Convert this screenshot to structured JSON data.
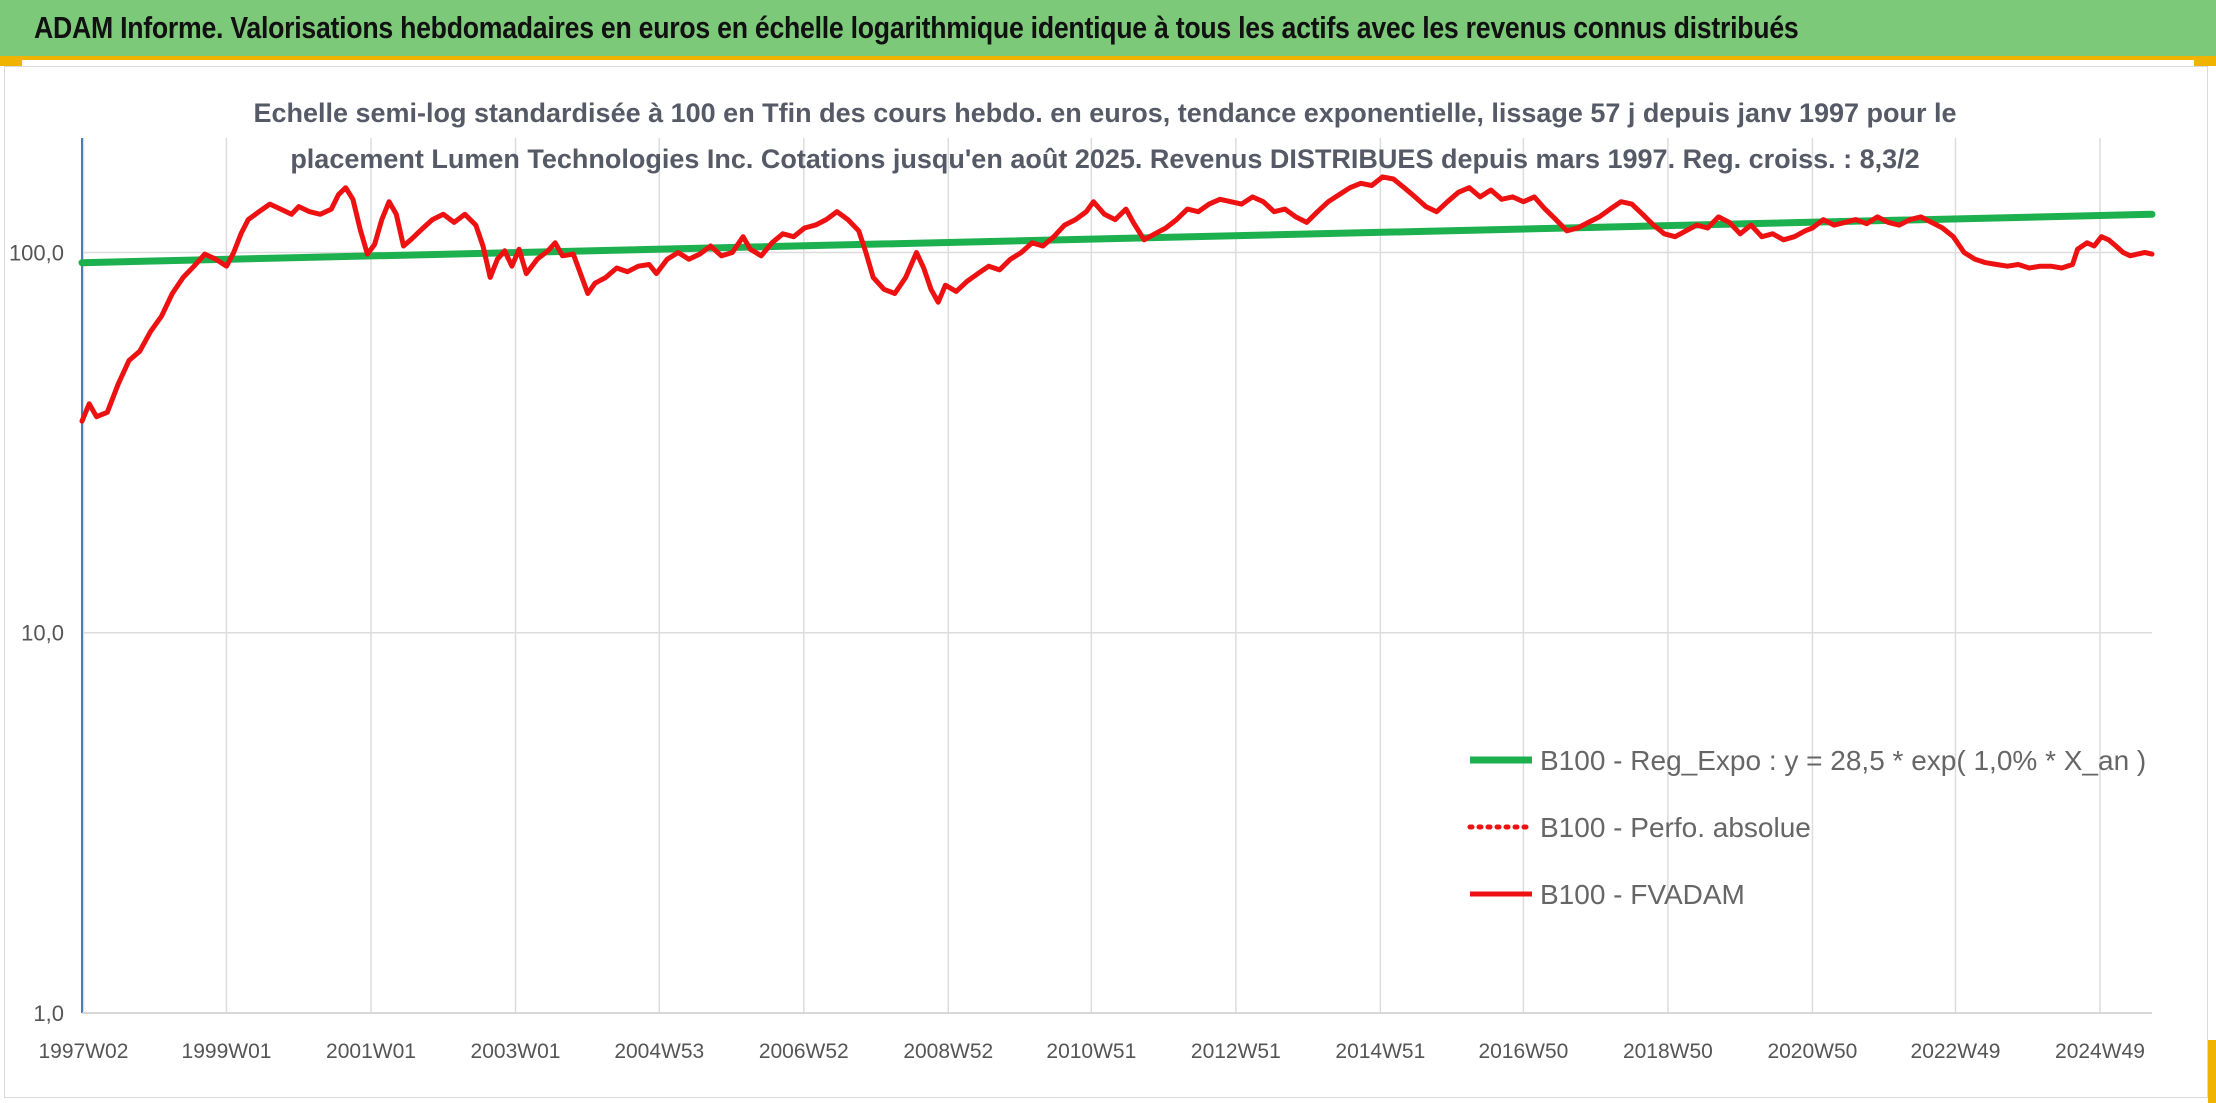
{
  "header": {
    "title": "ADAM Informe. Valorisations hebdomadaires en euros en échelle logarithmique identique à tous les actifs avec les revenus connus distribués"
  },
  "chart_data": {
    "type": "line",
    "title_lines": [
      "Echelle semi-log standardisée à 100 en Tfin des cours hebdo. en euros, tendance exponentielle, lissage 57 j depuis janv 1997 pour le",
      "placement Lumen Technologies Inc. Cotations jusqu'en août 2025. Revenus DISTRIBUES depuis mars 1997. Reg. croiss. : 8,3/2"
    ],
    "y_scale": "log",
    "ylim": [
      1,
      200
    ],
    "xlim": [
      1997.0,
      2025.65
    ],
    "y_ticks": [
      {
        "value": 1,
        "label": "1,0"
      },
      {
        "value": 10,
        "label": "10,0"
      },
      {
        "value": 100,
        "label": "100,0"
      }
    ],
    "x_ticks": [
      {
        "value": 1997.02,
        "label": "1997W02"
      },
      {
        "value": 1999.0,
        "label": "1999W01"
      },
      {
        "value": 2001.0,
        "label": "2001W01"
      },
      {
        "value": 2003.0,
        "label": "2003W01"
      },
      {
        "value": 2004.99,
        "label": "2004W53"
      },
      {
        "value": 2006.99,
        "label": "2006W52"
      },
      {
        "value": 2008.99,
        "label": "2008W52"
      },
      {
        "value": 2010.97,
        "label": "2010W51"
      },
      {
        "value": 2012.97,
        "label": "2012W51"
      },
      {
        "value": 2014.97,
        "label": "2014W51"
      },
      {
        "value": 2016.95,
        "label": "2016W50"
      },
      {
        "value": 2018.95,
        "label": "2018W50"
      },
      {
        "value": 2020.95,
        "label": "2020W50"
      },
      {
        "value": 2022.93,
        "label": "2022W49"
      },
      {
        "value": 2024.93,
        "label": "2024W49"
      }
    ],
    "grid": "vertical and horizontal",
    "legend_position": "lower-right",
    "series": [
      {
        "name": "B100 - Reg_Expo : y = 28,5 * exp( 1,0% *  X_an )",
        "color": "#1db04f",
        "style": "solid",
        "points": [
          [
            1997.0,
            94
          ],
          [
            2025.65,
            126
          ]
        ]
      },
      {
        "name": "B100 - Perfo. absolue",
        "color": "#ee1111",
        "style": "dotted",
        "points": []
      },
      {
        "name": "B100 - FVADAM",
        "color": "#ee1111",
        "style": "solid",
        "points": [
          [
            1997.0,
            36
          ],
          [
            1997.1,
            40
          ],
          [
            1997.2,
            37
          ],
          [
            1997.35,
            38
          ],
          [
            1997.5,
            45
          ],
          [
            1997.65,
            52
          ],
          [
            1997.8,
            55
          ],
          [
            1997.95,
            62
          ],
          [
            1998.1,
            68
          ],
          [
            1998.25,
            78
          ],
          [
            1998.4,
            86
          ],
          [
            1998.55,
            92
          ],
          [
            1998.7,
            99
          ],
          [
            1998.85,
            96
          ],
          [
            1999.0,
            92
          ],
          [
            1999.1,
            100
          ],
          [
            1999.2,
            112
          ],
          [
            1999.3,
            122
          ],
          [
            1999.45,
            128
          ],
          [
            1999.6,
            134
          ],
          [
            1999.75,
            130
          ],
          [
            1999.9,
            126
          ],
          [
            2000.0,
            132
          ],
          [
            2000.15,
            128
          ],
          [
            2000.3,
            126
          ],
          [
            2000.45,
            130
          ],
          [
            2000.55,
            142
          ],
          [
            2000.65,
            148
          ],
          [
            2000.75,
            138
          ],
          [
            2000.85,
            115
          ],
          [
            2000.95,
            99
          ],
          [
            2001.05,
            105
          ],
          [
            2001.15,
            122
          ],
          [
            2001.25,
            136
          ],
          [
            2001.35,
            126
          ],
          [
            2001.45,
            104
          ],
          [
            2001.55,
            108
          ],
          [
            2001.7,
            115
          ],
          [
            2001.85,
            122
          ],
          [
            2002.0,
            126
          ],
          [
            2002.15,
            120
          ],
          [
            2002.3,
            126
          ],
          [
            2002.45,
            118
          ],
          [
            2002.55,
            104
          ],
          [
            2002.65,
            86
          ],
          [
            2002.75,
            96
          ],
          [
            2002.85,
            101
          ],
          [
            2002.95,
            92
          ],
          [
            2003.05,
            102
          ],
          [
            2003.15,
            88
          ],
          [
            2003.3,
            96
          ],
          [
            2003.45,
            101
          ],
          [
            2003.55,
            106
          ],
          [
            2003.65,
            98
          ],
          [
            2003.8,
            99
          ],
          [
            2003.9,
            88
          ],
          [
            2004.0,
            78
          ],
          [
            2004.1,
            83
          ],
          [
            2004.25,
            86
          ],
          [
            2004.4,
            91
          ],
          [
            2004.55,
            89
          ],
          [
            2004.7,
            92
          ],
          [
            2004.85,
            93
          ],
          [
            2004.95,
            88
          ],
          [
            2005.1,
            96
          ],
          [
            2005.25,
            100
          ],
          [
            2005.4,
            96
          ],
          [
            2005.55,
            99
          ],
          [
            2005.7,
            104
          ],
          [
            2005.85,
            98
          ],
          [
            2006.0,
            100
          ],
          [
            2006.15,
            110
          ],
          [
            2006.25,
            102
          ],
          [
            2006.4,
            98
          ],
          [
            2006.55,
            106
          ],
          [
            2006.7,
            112
          ],
          [
            2006.85,
            110
          ],
          [
            2007.0,
            116
          ],
          [
            2007.15,
            118
          ],
          [
            2007.3,
            122
          ],
          [
            2007.45,
            128
          ],
          [
            2007.6,
            122
          ],
          [
            2007.75,
            114
          ],
          [
            2007.85,
            100
          ],
          [
            2007.95,
            86
          ],
          [
            2008.1,
            80
          ],
          [
            2008.25,
            78
          ],
          [
            2008.4,
            86
          ],
          [
            2008.55,
            100
          ],
          [
            2008.65,
            91
          ],
          [
            2008.75,
            80
          ],
          [
            2008.85,
            74
          ],
          [
            2008.95,
            82
          ],
          [
            2009.1,
            79
          ],
          [
            2009.25,
            84
          ],
          [
            2009.4,
            88
          ],
          [
            2009.55,
            92
          ],
          [
            2009.7,
            90
          ],
          [
            2009.85,
            96
          ],
          [
            2010.0,
            100
          ],
          [
            2010.15,
            106
          ],
          [
            2010.3,
            104
          ],
          [
            2010.45,
            110
          ],
          [
            2010.6,
            118
          ],
          [
            2010.75,
            122
          ],
          [
            2010.9,
            128
          ],
          [
            2011.0,
            136
          ],
          [
            2011.15,
            126
          ],
          [
            2011.3,
            122
          ],
          [
            2011.45,
            130
          ],
          [
            2011.55,
            120
          ],
          [
            2011.7,
            108
          ],
          [
            2011.85,
            112
          ],
          [
            2012.0,
            116
          ],
          [
            2012.15,
            122
          ],
          [
            2012.3,
            130
          ],
          [
            2012.45,
            128
          ],
          [
            2012.6,
            134
          ],
          [
            2012.75,
            138
          ],
          [
            2012.9,
            136
          ],
          [
            2013.05,
            134
          ],
          [
            2013.2,
            140
          ],
          [
            2013.35,
            136
          ],
          [
            2013.5,
            128
          ],
          [
            2013.65,
            130
          ],
          [
            2013.8,
            124
          ],
          [
            2013.95,
            120
          ],
          [
            2014.1,
            128
          ],
          [
            2014.25,
            136
          ],
          [
            2014.4,
            142
          ],
          [
            2014.55,
            148
          ],
          [
            2014.7,
            152
          ],
          [
            2014.85,
            150
          ],
          [
            2015.0,
            158
          ],
          [
            2015.15,
            156
          ],
          [
            2015.3,
            148
          ],
          [
            2015.45,
            140
          ],
          [
            2015.6,
            132
          ],
          [
            2015.75,
            128
          ],
          [
            2015.9,
            136
          ],
          [
            2016.05,
            144
          ],
          [
            2016.2,
            148
          ],
          [
            2016.35,
            140
          ],
          [
            2016.5,
            146
          ],
          [
            2016.65,
            138
          ],
          [
            2016.8,
            140
          ],
          [
            2016.95,
            136
          ],
          [
            2017.1,
            140
          ],
          [
            2017.25,
            130
          ],
          [
            2017.4,
            122
          ],
          [
            2017.55,
            114
          ],
          [
            2017.7,
            116
          ],
          [
            2017.85,
            120
          ],
          [
            2018.0,
            124
          ],
          [
            2018.15,
            130
          ],
          [
            2018.3,
            136
          ],
          [
            2018.45,
            134
          ],
          [
            2018.6,
            126
          ],
          [
            2018.75,
            118
          ],
          [
            2018.9,
            112
          ],
          [
            2019.05,
            110
          ],
          [
            2019.2,
            114
          ],
          [
            2019.35,
            118
          ],
          [
            2019.5,
            116
          ],
          [
            2019.65,
            124
          ],
          [
            2019.8,
            120
          ],
          [
            2019.95,
            112
          ],
          [
            2020.1,
            118
          ],
          [
            2020.25,
            110
          ],
          [
            2020.4,
            112
          ],
          [
            2020.55,
            108
          ],
          [
            2020.7,
            110
          ],
          [
            2020.85,
            114
          ],
          [
            2020.95,
            116
          ],
          [
            2021.1,
            122
          ],
          [
            2021.25,
            118
          ],
          [
            2021.4,
            120
          ],
          [
            2021.55,
            122
          ],
          [
            2021.7,
            119
          ],
          [
            2021.85,
            124
          ],
          [
            2022.0,
            120
          ],
          [
            2022.15,
            118
          ],
          [
            2022.3,
            122
          ],
          [
            2022.45,
            124
          ],
          [
            2022.6,
            120
          ],
          [
            2022.75,
            116
          ],
          [
            2022.9,
            110
          ],
          [
            2023.05,
            100
          ],
          [
            2023.2,
            96
          ],
          [
            2023.35,
            94
          ],
          [
            2023.5,
            93
          ],
          [
            2023.65,
            92
          ],
          [
            2023.8,
            93
          ],
          [
            2023.95,
            91
          ],
          [
            2024.1,
            92
          ],
          [
            2024.25,
            92
          ],
          [
            2024.4,
            91
          ],
          [
            2024.55,
            93
          ],
          [
            2024.62,
            102
          ],
          [
            2024.75,
            106
          ],
          [
            2024.85,
            104
          ],
          [
            2024.95,
            110
          ],
          [
            2025.05,
            108
          ],
          [
            2025.15,
            104
          ],
          [
            2025.25,
            100
          ],
          [
            2025.35,
            98
          ],
          [
            2025.45,
            99
          ],
          [
            2025.55,
            100
          ],
          [
            2025.65,
            99
          ]
        ]
      }
    ]
  }
}
